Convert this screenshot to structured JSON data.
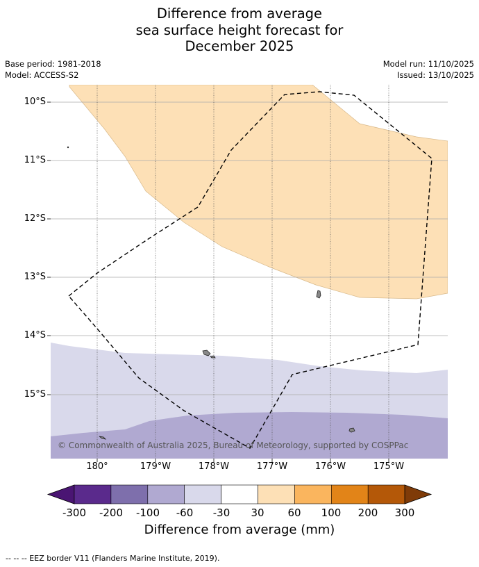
{
  "title": {
    "line1": "Difference from average",
    "line2": "sea surface height forecast for",
    "line3": "December 2025"
  },
  "meta": {
    "base_period": "Base period: 1981-2018",
    "model": "Model: ACCESS-S2",
    "model_run": "Model run: 11/10/2025",
    "issued": "Issued: 13/10/2025"
  },
  "map": {
    "lat_ticks": [
      "10°S",
      "11°S",
      "12°S",
      "13°S",
      "14°S",
      "15°S"
    ],
    "lon_ticks": [
      "180°",
      "179°W",
      "178°W",
      "177°W",
      "176°W",
      "175°W"
    ],
    "copyright": "© Commonwealth of Australia 2025, Bureau of Meteorology, supported by COSPPac"
  },
  "colorbar": {
    "labels": [
      "-300",
      "-200",
      "-100",
      "-60",
      "-30",
      "30",
      "60",
      "100",
      "200",
      "300"
    ],
    "colors": [
      "#4a1573",
      "#5a2a8c",
      "#7e6fac",
      "#b0a9d1",
      "#d9d9eb",
      "#ffffff",
      "#fde0b6",
      "#fab55e",
      "#e28418",
      "#b45808",
      "#7f3b08"
    ],
    "title": "Difference from average (mm)"
  },
  "footnote": "--  --  -- EEZ border V11 (Flanders Marine Institute, 2019)."
}
